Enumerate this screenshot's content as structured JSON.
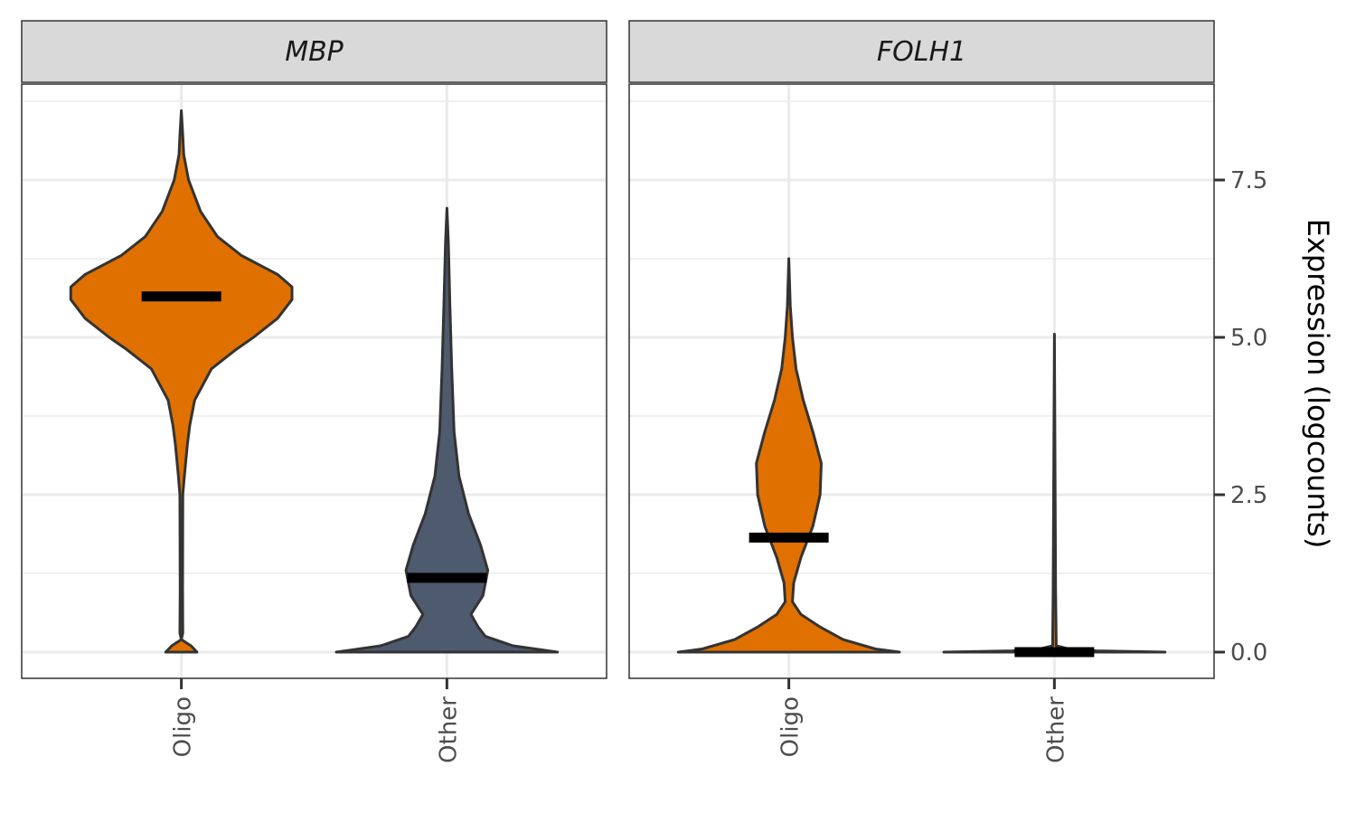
{
  "chart_data": {
    "type": "violin",
    "ylabel": "Expression (logcounts)",
    "y_ticks": [
      "0.0",
      "2.5",
      "5.0",
      "7.5"
    ],
    "ylim": [
      -0.4,
      9.0
    ],
    "categories": [
      "Oligo",
      "Other"
    ],
    "panels": [
      {
        "name": "MBP",
        "violins": [
          {
            "category": "Oligo",
            "color": "#E07000",
            "median": 5.65,
            "max": 8.6,
            "profile": [
              [
                0.0,
                0.13
              ],
              [
                0.1,
                0.08
              ],
              [
                0.2,
                0.0
              ],
              [
                0.3,
                0.012
              ],
              [
                1.0,
                0.01
              ],
              [
                2.5,
                0.012
              ],
              [
                2.8,
                0.025
              ],
              [
                3.3,
                0.05
              ],
              [
                3.6,
                0.07
              ],
              [
                4.0,
                0.11
              ],
              [
                4.5,
                0.25
              ],
              [
                4.8,
                0.45
              ],
              [
                5.0,
                0.6
              ],
              [
                5.3,
                0.8
              ],
              [
                5.6,
                0.92
              ],
              [
                5.8,
                0.92
              ],
              [
                6.0,
                0.8
              ],
              [
                6.3,
                0.5
              ],
              [
                6.6,
                0.3
              ],
              [
                7.0,
                0.16
              ],
              [
                7.5,
                0.06
              ],
              [
                7.9,
                0.02
              ],
              [
                8.2,
                0.012
              ],
              [
                8.6,
                0.0
              ]
            ]
          },
          {
            "category": "Other",
            "color": "#4E5A6E",
            "median": 1.18,
            "max": 7.05,
            "profile": [
              [
                0.0,
                0.92
              ],
              [
                0.1,
                0.55
              ],
              [
                0.25,
                0.32
              ],
              [
                0.4,
                0.26
              ],
              [
                0.6,
                0.2
              ],
              [
                0.9,
                0.3
              ],
              [
                1.3,
                0.34
              ],
              [
                1.7,
                0.28
              ],
              [
                2.2,
                0.18
              ],
              [
                2.8,
                0.1
              ],
              [
                3.5,
                0.06
              ],
              [
                4.5,
                0.04
              ],
              [
                5.5,
                0.025
              ],
              [
                6.5,
                0.012
              ],
              [
                7.05,
                0.0
              ]
            ]
          }
        ]
      },
      {
        "name": "FOLH1",
        "violins": [
          {
            "category": "Oligo",
            "color": "#E07000",
            "median": 1.82,
            "max": 6.25,
            "profile": [
              [
                0.0,
                0.92
              ],
              [
                0.05,
                0.72
              ],
              [
                0.2,
                0.45
              ],
              [
                0.4,
                0.26
              ],
              [
                0.6,
                0.1
              ],
              [
                0.8,
                0.03
              ],
              [
                1.1,
                0.04
              ],
              [
                1.5,
                0.1
              ],
              [
                2.0,
                0.2
              ],
              [
                2.5,
                0.26
              ],
              [
                3.0,
                0.27
              ],
              [
                3.5,
                0.2
              ],
              [
                4.0,
                0.12
              ],
              [
                4.5,
                0.06
              ],
              [
                5.0,
                0.03
              ],
              [
                5.5,
                0.012
              ],
              [
                6.25,
                0.0
              ]
            ]
          },
          {
            "category": "Other",
            "color": "#E07000",
            "median": 0.0,
            "max": 5.05,
            "profile": [
              [
                0.0,
                0.92
              ],
              [
                0.02,
                0.35
              ],
              [
                0.05,
                0.12
              ],
              [
                0.1,
                0.015
              ],
              [
                1.0,
                0.01
              ],
              [
                5.05,
                0.0
              ]
            ]
          }
        ]
      }
    ]
  }
}
